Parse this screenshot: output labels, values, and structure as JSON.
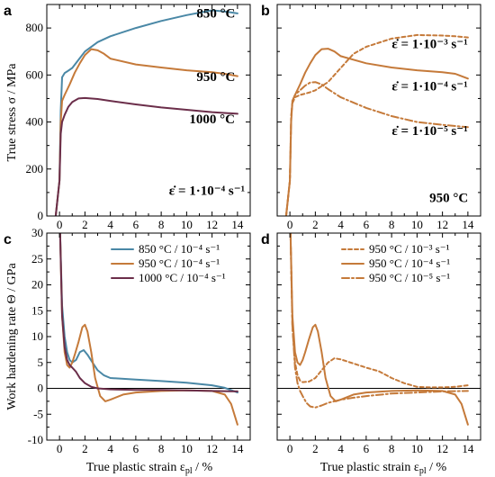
{
  "figure": {
    "ylabel_top": "True stress σ / MPa",
    "ylabel_bottom": "Work hardening rate Θ / GPa",
    "xlabel": "True plastic strain ε_pl / %",
    "xlabel_main": "True plastic strain ε",
    "xlabel_sub": "pl",
    "xlabel_unit": " / %"
  },
  "chart_data": [
    {
      "panel": "a",
      "type": "line",
      "xlim": [
        -1,
        15
      ],
      "ylim": [
        0,
        900
      ],
      "xticks": [
        0,
        2,
        4,
        6,
        8,
        10,
        12,
        14
      ],
      "yticks": [
        0,
        200,
        400,
        600,
        800
      ],
      "ytick_labels": [
        "0",
        "200",
        "400",
        "600",
        "800"
      ],
      "annotations": [
        {
          "text": "850 °C",
          "x": 12.3,
          "y": 845
        },
        {
          "text": "950 °C",
          "x": 12.3,
          "y": 575
        },
        {
          "text": "1000 °C",
          "x": 12.0,
          "y": 395
        },
        {
          "text": "ε̇ = 1·10⁻⁴ s⁻¹",
          "x": 11.6,
          "y": 90
        }
      ],
      "series": [
        {
          "color": "#4a88a6",
          "style": "solid",
          "x": [
            -0.3,
            0.0,
            0.1,
            0.2,
            0.4,
            0.6,
            1.0,
            1.5,
            2.0,
            3.0,
            4.0,
            6.0,
            8.0,
            10.0,
            11.0,
            12.0,
            13.0,
            14.0
          ],
          "y": [
            0,
            150,
            450,
            590,
            608,
            615,
            630,
            665,
            700,
            740,
            765,
            800,
            830,
            855,
            865,
            875,
            870,
            862
          ]
        },
        {
          "color": "#c57a3a",
          "style": "solid",
          "x": [
            -0.3,
            0.0,
            0.1,
            0.2,
            0.4,
            0.8,
            1.2,
            1.6,
            2.0,
            2.5,
            3.0,
            3.5,
            4.0,
            6.0,
            8.0,
            10.0,
            12.0,
            13.0,
            14.0
          ],
          "y": [
            0,
            150,
            400,
            490,
            515,
            560,
            610,
            650,
            685,
            710,
            705,
            690,
            670,
            645,
            632,
            620,
            612,
            605,
            595
          ]
        },
        {
          "color": "#6b2e4a",
          "style": "solid",
          "x": [
            -0.3,
            0.0,
            0.1,
            0.2,
            0.4,
            0.7,
            1.0,
            1.5,
            2.0,
            3.0,
            4.0,
            6.0,
            8.0,
            10.0,
            12.0,
            14.0
          ],
          "y": [
            0,
            150,
            350,
            400,
            430,
            465,
            485,
            500,
            502,
            498,
            490,
            475,
            462,
            452,
            442,
            435
          ]
        }
      ]
    },
    {
      "panel": "b",
      "type": "line",
      "xlim": [
        -1,
        15
      ],
      "ylim": [
        0,
        900
      ],
      "xticks": [
        0,
        2,
        4,
        6,
        8,
        10,
        12,
        14
      ],
      "yticks": [
        0,
        200,
        400,
        600,
        800
      ],
      "annotations": [
        {
          "text": "ε̇ = 1·10⁻³ s⁻¹",
          "x": 11.0,
          "y": 715
        },
        {
          "text": "ε̇ = 1·10⁻⁴ s⁻¹",
          "x": 11.0,
          "y": 535
        },
        {
          "text": "ε̇ = 1·10⁻⁵ s⁻¹",
          "x": 11.0,
          "y": 345
        },
        {
          "text": "950 °C",
          "x": 12.5,
          "y": 60
        }
      ],
      "series": [
        {
          "color": "#c57a3a",
          "style": "dashed",
          "x": [
            -0.3,
            0.0,
            0.1,
            0.2,
            0.4,
            0.8,
            1.5,
            2.0,
            3.0,
            4.0,
            5.0,
            6.0,
            8.0,
            10.0,
            12.0,
            13.0,
            14.0
          ],
          "y": [
            0,
            150,
            420,
            480,
            505,
            515,
            525,
            535,
            570,
            630,
            690,
            720,
            755,
            770,
            768,
            765,
            760
          ]
        },
        {
          "color": "#c57a3a",
          "style": "solid",
          "x": [
            -0.3,
            0.0,
            0.1,
            0.2,
            0.4,
            0.8,
            1.2,
            1.6,
            2.0,
            2.5,
            3.0,
            3.5,
            4.0,
            6.0,
            8.0,
            10.0,
            12.0,
            13.0,
            14.0
          ],
          "y": [
            0,
            150,
            400,
            490,
            515,
            560,
            610,
            650,
            685,
            710,
            712,
            700,
            680,
            650,
            632,
            620,
            612,
            605,
            585
          ]
        },
        {
          "color": "#c57a3a",
          "style": "dashdot",
          "x": [
            -0.3,
            0.0,
            0.1,
            0.2,
            0.4,
            0.8,
            1.2,
            1.6,
            2.0,
            2.5,
            3.0,
            4.0,
            6.0,
            8.0,
            10.0,
            12.0,
            14.0
          ],
          "y": [
            0,
            150,
            420,
            490,
            515,
            535,
            555,
            568,
            570,
            560,
            540,
            505,
            460,
            425,
            400,
            388,
            378
          ]
        }
      ]
    },
    {
      "panel": "c",
      "type": "line",
      "xlim": [
        -1,
        15
      ],
      "ylim": [
        -10,
        30
      ],
      "xticks": [
        0,
        2,
        4,
        6,
        8,
        10,
        12,
        14
      ],
      "yticks": [
        -10,
        -5,
        0,
        5,
        10,
        15,
        20,
        25,
        30
      ],
      "legend": [
        {
          "label": "850 °C / 10⁻⁴ s⁻¹",
          "color": "#4a88a6",
          "style": "solid"
        },
        {
          "label": "950 °C / 10⁻⁴ s⁻¹",
          "color": "#c57a3a",
          "style": "solid"
        },
        {
          "label": "1000 °C / 10⁻⁴ s⁻¹",
          "color": "#6b2e4a",
          "style": "solid"
        }
      ],
      "series": [
        {
          "color": "#4a88a6",
          "style": "solid",
          "x": [
            0.05,
            0.2,
            0.4,
            0.6,
            0.8,
            1.0,
            1.3,
            1.6,
            1.9,
            2.2,
            2.6,
            3.0,
            3.5,
            4.0,
            6.0,
            8.0,
            10.0,
            12.0,
            13.0,
            14.0
          ],
          "y": [
            30,
            16,
            10,
            7,
            5.5,
            5,
            5.5,
            7,
            7.4,
            6.5,
            5,
            3.5,
            2.5,
            2.0,
            1.7,
            1.4,
            1.1,
            0.6,
            0.1,
            -0.8
          ]
        },
        {
          "color": "#c57a3a",
          "style": "solid",
          "x": [
            0.05,
            0.2,
            0.4,
            0.6,
            0.8,
            1.0,
            1.2,
            1.5,
            1.8,
            2.0,
            2.2,
            2.5,
            2.8,
            3.2,
            3.6,
            4.0,
            5.0,
            6.0,
            8.0,
            10.0,
            12.0,
            13.0,
            13.5,
            14.0
          ],
          "y": [
            30,
            14,
            7,
            4.5,
            4,
            5,
            6.5,
            9,
            11.8,
            12.3,
            11,
            7,
            2,
            -1.5,
            -2.5,
            -2.2,
            -1.2,
            -0.8,
            -0.5,
            -0.4,
            -0.5,
            -1.2,
            -3,
            -7
          ]
        },
        {
          "color": "#6b2e4a",
          "style": "solid",
          "x": [
            0.05,
            0.2,
            0.4,
            0.6,
            0.8,
            1.0,
            1.3,
            1.6,
            2.0,
            2.5,
            3.0,
            4.0,
            6.0,
            8.0,
            10.0,
            12.0,
            14.0
          ],
          "y": [
            30,
            14,
            8,
            5.5,
            4.5,
            4,
            3.2,
            2.0,
            1.0,
            0.3,
            0,
            -0.2,
            -0.3,
            -0.3,
            -0.4,
            -0.5,
            -0.6
          ]
        }
      ]
    },
    {
      "panel": "d",
      "type": "line",
      "xlim": [
        -1,
        15
      ],
      "ylim": [
        -10,
        30
      ],
      "xticks": [
        0,
        2,
        4,
        6,
        8,
        10,
        12,
        14
      ],
      "yticks": [
        -10,
        -5,
        0,
        5,
        10,
        15,
        20,
        25,
        30
      ],
      "legend": [
        {
          "label": "950 °C / 10⁻³ s⁻¹",
          "color": "#c57a3a",
          "style": "dashed"
        },
        {
          "label": "950 °C / 10⁻⁴ s⁻¹",
          "color": "#c57a3a",
          "style": "solid"
        },
        {
          "label": "950 °C / 10⁻⁵ s⁻¹",
          "color": "#c57a3a",
          "style": "dashdot"
        }
      ],
      "series": [
        {
          "color": "#c57a3a",
          "style": "dashed",
          "x": [
            0.05,
            0.2,
            0.4,
            0.6,
            0.8,
            1.0,
            1.5,
            2.0,
            2.5,
            3.0,
            3.5,
            4.0,
            5.0,
            6.0,
            7.0,
            8.0,
            9.0,
            10.0,
            11.0,
            12.0,
            13.0,
            14.0
          ],
          "y": [
            30,
            12,
            5,
            2.5,
            1.5,
            1.2,
            1.3,
            2,
            3.5,
            5,
            5.8,
            5.6,
            4.8,
            4,
            3.3,
            2,
            1,
            0.3,
            0.2,
            0.2,
            0.3,
            0.6
          ]
        },
        {
          "color": "#c57a3a",
          "style": "solid",
          "x": [
            0.05,
            0.2,
            0.4,
            0.6,
            0.8,
            1.0,
            1.2,
            1.5,
            1.8,
            2.0,
            2.2,
            2.5,
            2.8,
            3.2,
            3.6,
            4.0,
            5.0,
            6.0,
            8.0,
            10.0,
            12.0,
            13.0,
            13.5,
            14.0
          ],
          "y": [
            30,
            14,
            7,
            5,
            4.5,
            5.5,
            7,
            9.5,
            11.8,
            12.3,
            11,
            7,
            2,
            -1.5,
            -2.5,
            -2.2,
            -1.2,
            -0.8,
            -0.5,
            -0.4,
            -0.5,
            -1.2,
            -3,
            -7
          ]
        },
        {
          "color": "#c57a3a",
          "style": "dashdot",
          "x": [
            0.05,
            0.2,
            0.4,
            0.6,
            0.8,
            1.0,
            1.3,
            1.6,
            2.0,
            2.5,
            3.0,
            4.0,
            5.0,
            6.0,
            8.0,
            10.0,
            12.0,
            14.0
          ],
          "y": [
            30,
            12,
            4,
            1,
            -0.5,
            -1.5,
            -2.8,
            -3.5,
            -3.7,
            -3.3,
            -2.8,
            -2.2,
            -1.8,
            -1.5,
            -1.0,
            -0.8,
            -0.6,
            -0.5
          ]
        }
      ]
    }
  ]
}
